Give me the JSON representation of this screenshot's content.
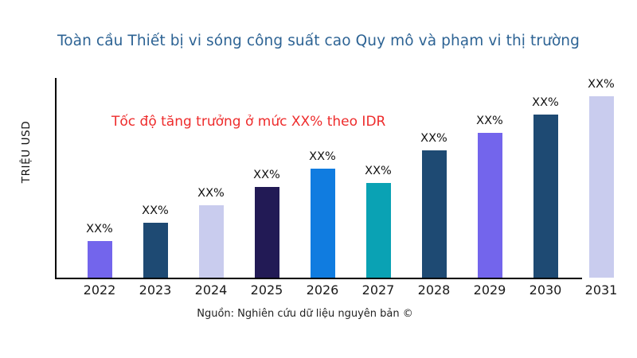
{
  "title": "Toàn cầu Thiết bị vi sóng công suất cao Quy mô và phạm vi thị trường",
  "title_color": "#2d6394",
  "annotation": {
    "text": "Tốc độ tăng trưởng ở mức XX% theo IDR",
    "color": "#ee2c2c"
  },
  "source": "Nguồn: Nghiên cứu dữ liệu nguyên bản ©",
  "chart_data": {
    "type": "bar",
    "title": "Toàn cầu Thiết bị vi sóng công suất cao Quy mô và phạm vi thị trường",
    "xlabel": "",
    "ylabel": "TRIỆU USD",
    "categories": [
      "2022",
      "2023",
      "2024",
      "2025",
      "2026",
      "2027",
      "2028",
      "2029",
      "2030",
      "2031"
    ],
    "values": [
      46,
      69,
      91,
      114,
      137,
      119,
      160,
      182,
      205,
      228
    ],
    "value_labels": [
      "XX%",
      "XX%",
      "XX%",
      "XX%",
      "XX%",
      "XX%",
      "XX%",
      "XX%",
      "XX%",
      "XX%"
    ],
    "bar_colors": [
      "#7365ec",
      "#1e4a73",
      "#c9ccee",
      "#221a55",
      "#107ce0",
      "#0aa2b4",
      "#1e4a73",
      "#7365ec",
      "#1e4a73",
      "#c9ccee"
    ],
    "annotation": "Tốc độ tăng trưởng ở mức XX% theo IDR",
    "grid": false,
    "legend": false,
    "axis_color": "#000000"
  }
}
